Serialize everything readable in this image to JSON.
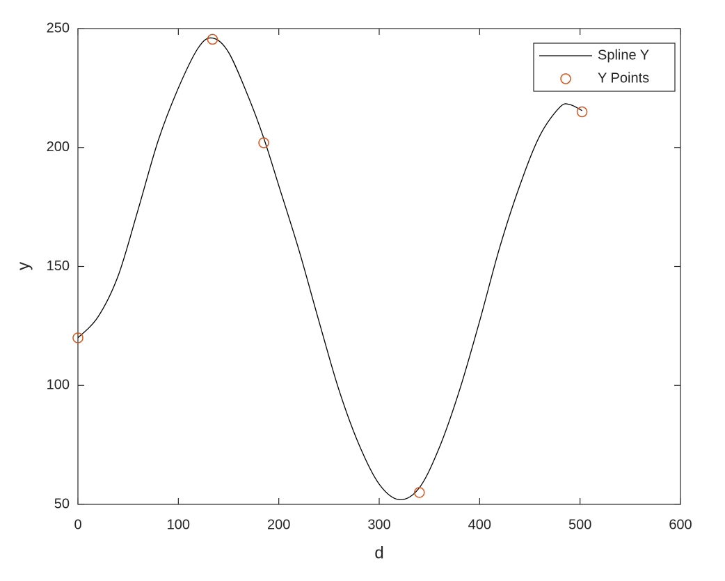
{
  "chart_data": {
    "type": "line",
    "xlabel": "d",
    "ylabel": "y",
    "xlim": [
      0,
      600
    ],
    "xticks": [
      0,
      100,
      200,
      300,
      400,
      500,
      600
    ],
    "ylim": [
      50,
      250
    ],
    "yticks": [
      50,
      100,
      150,
      200,
      250
    ],
    "grid": false,
    "box": true,
    "legend": "upper right",
    "series": [
      {
        "name": "Spline Y",
        "type": "line",
        "color": "#000000",
        "x": [
          0,
          20,
          40,
          60,
          80,
          100,
          120,
          134,
          150,
          170,
          185,
          200,
          220,
          240,
          260,
          280,
          300,
          320,
          340,
          360,
          380,
          400,
          420,
          440,
          460,
          480,
          490,
          502
        ],
        "values": [
          120,
          128.8,
          146,
          174,
          203,
          225,
          242,
          246,
          240,
          221,
          204,
          184,
          157,
          127,
          98,
          75,
          58.5,
          52,
          57,
          74,
          98,
          127,
          158,
          184,
          205,
          217,
          218,
          215.5
        ]
      },
      {
        "name": "Y Points",
        "type": "scatter",
        "color": "#d95319",
        "x": [
          0,
          134,
          185,
          340,
          502
        ],
        "values": [
          120,
          245.5,
          202,
          55,
          215
        ]
      }
    ]
  }
}
